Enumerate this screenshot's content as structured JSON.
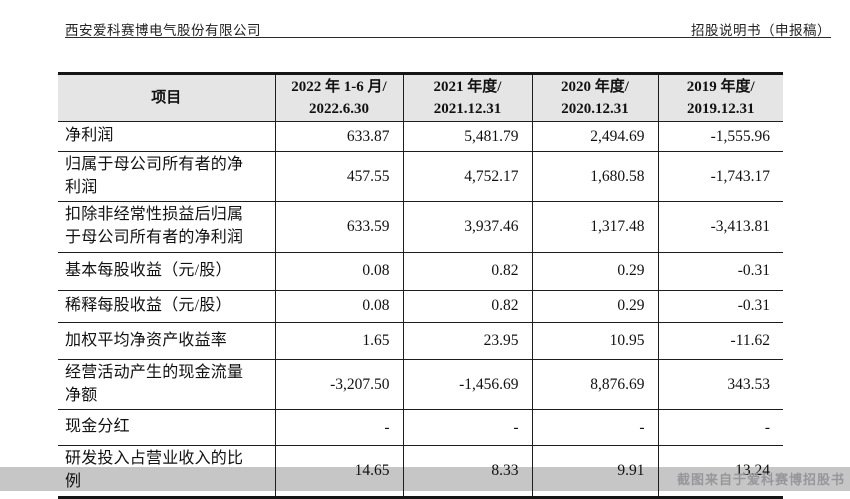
{
  "page_header": {
    "company": "西安爱科赛博电气股份有限公司",
    "doc_title": "招股说明书（申报稿）"
  },
  "table": {
    "headers": [
      {
        "line1": "项目",
        "line2": ""
      },
      {
        "line1": "2022 年 1-6 月/",
        "line2": "2022.6.30"
      },
      {
        "line1": "2021 年度/",
        "line2": "2021.12.31"
      },
      {
        "line1": "2020 年度/",
        "line2": "2020.12.31"
      },
      {
        "line1": "2019 年度/",
        "line2": "2019.12.31"
      }
    ],
    "rows": [
      {
        "label": "净利润",
        "values": [
          "633.87",
          "5,481.79",
          "2,494.69",
          "-1,555.96"
        ]
      },
      {
        "label": "归属于母公司所有者的净利润",
        "values": [
          "457.55",
          "4,752.17",
          "1,680.58",
          "-1,743.17"
        ]
      },
      {
        "label": "扣除非经常性损益后归属于母公司所有者的净利润",
        "values": [
          "633.59",
          "3,937.46",
          "1,317.48",
          "-3,413.81"
        ]
      },
      {
        "label": "基本每股收益（元/股）",
        "values": [
          "0.08",
          "0.82",
          "0.29",
          "-0.31"
        ]
      },
      {
        "label": "稀释每股收益（元/股）",
        "values": [
          "0.08",
          "0.82",
          "0.29",
          "-0.31"
        ]
      },
      {
        "label": "加权平均净资产收益率",
        "values": [
          "1.65",
          "23.95",
          "10.95",
          "-11.62"
        ]
      },
      {
        "label": "经营活动产生的现金流量净额",
        "values": [
          "-3,207.50",
          "-1,456.69",
          "8,876.69",
          "343.53"
        ]
      },
      {
        "label": "现金分红",
        "values": [
          "-",
          "-",
          "-",
          "-"
        ]
      },
      {
        "label": "研发投入占营业收入的比例",
        "values": [
          "14.65",
          "8.33",
          "9.91",
          "13.24"
        ]
      }
    ]
  },
  "watermark": {
    "text": "截图来自于爱科赛博招股书"
  },
  "colors": {
    "header_bg": "#e5e5e5",
    "watermark_bar": "#c6c6c6",
    "watermark_text": "#97979b"
  }
}
